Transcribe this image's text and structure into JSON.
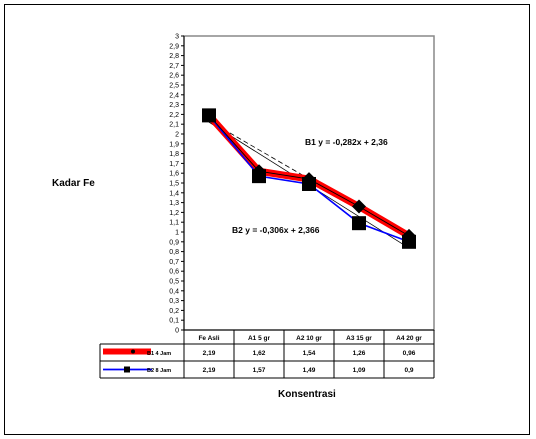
{
  "chart_data": {
    "type": "line",
    "title": "",
    "xlabel": "Konsentrasi",
    "ylabel": "Kadar Fe",
    "ylim": [
      0,
      3
    ],
    "y_step": 0.1,
    "categories": [
      "Fe Asli",
      "A1 5 gr",
      "A2 10 gr",
      "A3 15 gr",
      "A4 20 gr"
    ],
    "series": [
      {
        "name": "B1 4 Jam",
        "values": [
          2.19,
          1.62,
          1.54,
          1.26,
          0.96
        ],
        "table_values": [
          "2,19",
          "1,62",
          "1,54",
          "1,26",
          "0,96"
        ],
        "color": "#ff0000",
        "trendline": {
          "slope": -0.282,
          "intercept": 2.36,
          "label": "B1    y = -0,282x + 2,36"
        }
      },
      {
        "name": "B2 8 Jam",
        "values": [
          2.19,
          1.57,
          1.49,
          1.09,
          0.9
        ],
        "table_values": [
          "2,19",
          "1,57",
          "1,49",
          "1,09",
          "0,9"
        ],
        "color": "#0000ff",
        "trendline": {
          "slope": -0.306,
          "intercept": 2.366,
          "label": "B2   y = -0,306x + 2,366"
        }
      }
    ],
    "grid": false,
    "legend": "data-table"
  }
}
